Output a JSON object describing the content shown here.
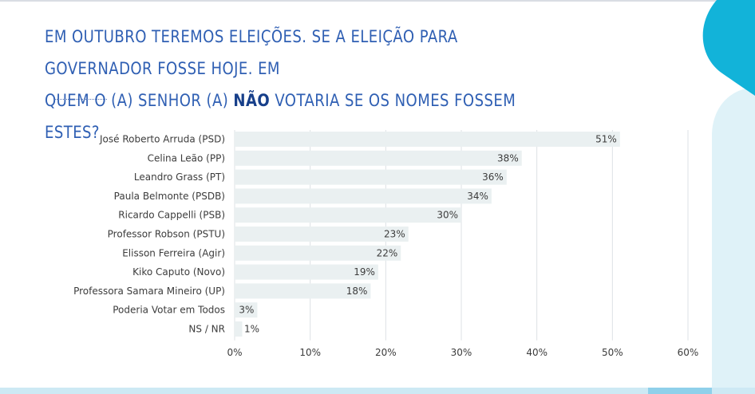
{
  "title": {
    "line1": "EM OUTUBRO TEREMOS ELEIÇÕES. SE A ELEIÇÃO PARA GOVERNADOR FOSSE HOJE. EM",
    "line2_before": "QUEM O (A) SENHOR (A) ",
    "line2_strong": "NÃO",
    "line2_after": " VOTARIA SE OS NOMES FOSSEM ESTES?"
  },
  "colors": {
    "title": "#2f5fb3",
    "bar": "#eaf0f1",
    "grid": "#dde1e5",
    "deco_dark": "#12b3d9",
    "deco_light": "#dff2f8"
  },
  "chart_data": {
    "type": "bar",
    "orientation": "horizontal",
    "categories": [
      "José Roberto Arruda (PSD)",
      "Celina Leão (PP)",
      "Leandro Grass (PT)",
      "Paula Belmonte (PSDB)",
      "Ricardo Cappelli (PSB)",
      "Professor Robson (PSTU)",
      "Elisson Ferreira (Agir)",
      "Kiko Caputo (Novo)",
      "Professora Samara Mineiro (UP)",
      "Poderia Votar em Todos",
      "NS / NR"
    ],
    "values": [
      51,
      38,
      36,
      34,
      30,
      23,
      22,
      19,
      18,
      3,
      1
    ],
    "value_labels": [
      "51%",
      "38%",
      "36%",
      "34%",
      "30%",
      "23%",
      "22%",
      "19%",
      "18%",
      "3%",
      "1%"
    ],
    "xticks": [
      "0%",
      "10%",
      "20%",
      "30%",
      "40%",
      "50%",
      "60%"
    ],
    "xlim": [
      0,
      60
    ],
    "grid": true,
    "legend": "none"
  }
}
